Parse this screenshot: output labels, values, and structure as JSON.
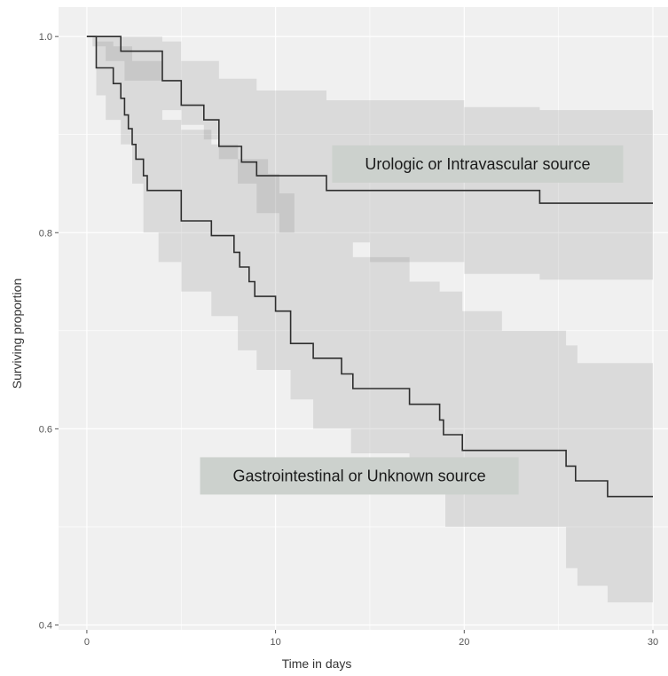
{
  "chart_data": {
    "type": "line",
    "title": "",
    "xlabel": "Time in days",
    "ylabel": "Surviving proportion",
    "xlim": [
      -1.5,
      30.8
    ],
    "ylim": [
      0.395,
      1.03
    ],
    "x_ticks": [
      0,
      10,
      20,
      30
    ],
    "y_ticks": [
      0.4,
      0.6,
      0.8,
      1.0
    ],
    "x_tick_labels": [
      "0",
      "10",
      "20",
      "30"
    ],
    "y_tick_labels": [
      "0.4",
      "0.6",
      "0.8",
      "1.0"
    ],
    "grid": true,
    "legend": "none",
    "colors": {
      "panel": "#f0f0f0",
      "grid": "#ffffff",
      "ribbon": "#808080",
      "line": "#2e2e2e",
      "label_box": "#ccd1cd"
    },
    "series": [
      {
        "steps": [
          [
            0,
            1.0
          ],
          [
            1.8,
            0.985
          ],
          [
            4.0,
            0.955
          ],
          [
            5.0,
            0.93
          ],
          [
            6.2,
            0.915
          ],
          [
            7.0,
            0.888
          ],
          [
            8.2,
            0.872
          ],
          [
            9.0,
            0.858
          ],
          [
            12.7,
            0.843
          ],
          [
            24.0,
            0.83
          ],
          [
            30,
            0.83
          ]
        ],
        "ci": [
          [
            [
              0,
              1.0
            ],
            [
              0.3,
              0.99
            ],
            [
              1.0,
              0.975
            ],
            [
              2.0,
              0.955
            ],
            [
              4.0,
              0.925
            ],
            [
              5.0,
              0.91
            ],
            [
              6.2,
              0.895
            ],
            [
              7.0,
              0.875
            ],
            [
              8.0,
              0.85
            ],
            [
              9.0,
              0.82
            ],
            [
              10.2,
              0.8
            ],
            [
              12.7,
              0.79
            ],
            [
              15.0,
              0.77
            ],
            [
              20.0,
              0.758
            ],
            [
              24.0,
              0.752
            ],
            [
              30,
              0.748
            ]
          ],
          [
            [
              0,
              1.0
            ],
            [
              1.8,
              1.0
            ],
            [
              4.0,
              0.995
            ],
            [
              5.0,
              0.975
            ],
            [
              7.0,
              0.957
            ],
            [
              9.0,
              0.945
            ],
            [
              12.7,
              0.935
            ],
            [
              20.0,
              0.928
            ],
            [
              24.0,
              0.925
            ],
            [
              30,
              0.924
            ]
          ]
        ]
      },
      {
        "steps": [
          [
            0,
            1.0
          ],
          [
            0.5,
            0.968
          ],
          [
            1.4,
            0.952
          ],
          [
            1.8,
            0.937
          ],
          [
            2.0,
            0.92
          ],
          [
            2.2,
            0.906
          ],
          [
            2.4,
            0.89
          ],
          [
            2.6,
            0.875
          ],
          [
            3.0,
            0.858
          ],
          [
            3.2,
            0.843
          ],
          [
            5.0,
            0.812
          ],
          [
            6.6,
            0.797
          ],
          [
            7.8,
            0.78
          ],
          [
            8.1,
            0.765
          ],
          [
            8.6,
            0.75
          ],
          [
            8.9,
            0.735
          ],
          [
            10.0,
            0.72
          ],
          [
            10.8,
            0.687
          ],
          [
            12.0,
            0.672
          ],
          [
            13.5,
            0.656
          ],
          [
            14.1,
            0.641
          ],
          [
            17.1,
            0.625
          ],
          [
            18.7,
            0.609
          ],
          [
            18.9,
            0.594
          ],
          [
            19.9,
            0.578
          ],
          [
            25.4,
            0.562
          ],
          [
            25.9,
            0.547
          ],
          [
            27.6,
            0.531
          ],
          [
            30,
            0.531
          ]
        ],
        "ci": [
          [
            [
              0,
              1.0
            ],
            [
              0.5,
              0.94
            ],
            [
              1.0,
              0.915
            ],
            [
              1.8,
              0.89
            ],
            [
              2.4,
              0.85
            ],
            [
              3.0,
              0.8
            ],
            [
              3.8,
              0.77
            ],
            [
              5.0,
              0.74
            ],
            [
              6.6,
              0.715
            ],
            [
              8.0,
              0.68
            ],
            [
              9.0,
              0.66
            ],
            [
              10.8,
              0.63
            ],
            [
              12.0,
              0.6
            ],
            [
              14.0,
              0.575
            ],
            [
              17.1,
              0.555
            ],
            [
              19.0,
              0.5
            ],
            [
              25.4,
              0.458
            ],
            [
              26.0,
              0.44
            ],
            [
              27.6,
              0.423
            ],
            [
              30,
              0.423
            ]
          ],
          [
            [
              0,
              1.0
            ],
            [
              0.5,
              0.995
            ],
            [
              1.4,
              0.99
            ],
            [
              2.4,
              0.975
            ],
            [
              4.0,
              0.935
            ],
            [
              4.0,
              0.915
            ],
            [
              5.0,
              0.905
            ],
            [
              6.6,
              0.89
            ],
            [
              8.0,
              0.875
            ],
            [
              9.6,
              0.86
            ],
            [
              10.2,
              0.84
            ],
            [
              11.0,
              0.8
            ],
            [
              12.7,
              0.79
            ],
            [
              14.1,
              0.775
            ],
            [
              17.1,
              0.75
            ],
            [
              18.7,
              0.74
            ],
            [
              19.9,
              0.72
            ],
            [
              22.0,
              0.7
            ],
            [
              25.4,
              0.685
            ],
            [
              26.0,
              0.667
            ],
            [
              30,
              0.667
            ]
          ]
        ]
      }
    ],
    "annotations": [
      {
        "text": "Urologic or Intravascular source",
        "x": 13.0,
        "y": 0.87
      },
      {
        "text": "Gastrointestinal or Unknown source",
        "x": 6.0,
        "y": 0.552
      }
    ]
  }
}
